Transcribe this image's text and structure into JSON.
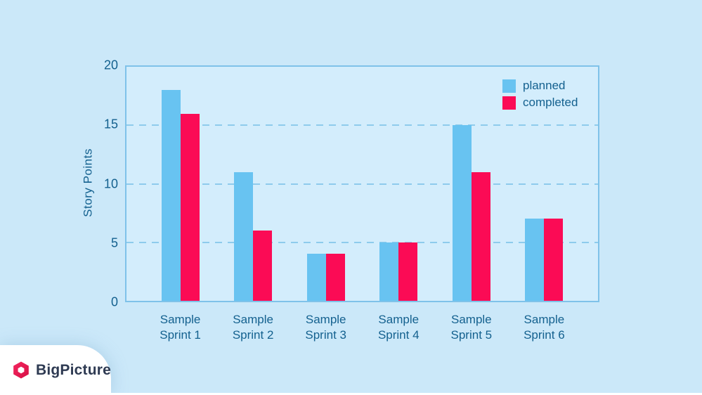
{
  "chart_data": {
    "type": "bar",
    "title": "",
    "xlabel": "",
    "ylabel": "Story Points",
    "categories": [
      "Sample Sprint 1",
      "Sample Sprint 2",
      "Sample Sprint 3",
      "Sample Sprint 4",
      "Sample Sprint 5",
      "Sample Sprint 6"
    ],
    "series": [
      {
        "name": "planned",
        "color": "#68c3f1",
        "values": [
          18,
          11,
          4,
          5,
          15,
          7
        ]
      },
      {
        "name": "completed",
        "color": "#fb0b55",
        "values": [
          16,
          6,
          4,
          5,
          11,
          7
        ]
      }
    ],
    "ylim": [
      0,
      20
    ],
    "yticks": [
      0,
      5,
      10,
      15,
      20
    ],
    "grid": "horizontal-dashed",
    "legend_position": "top-right"
  },
  "logo": {
    "text": "BigPicture",
    "icon": "hexagon-icon",
    "icon_color": "#e91a4f"
  },
  "colors": {
    "background": "#cbe8f9",
    "plot_background": "#d3edfc",
    "plot_border": "#7fc2e9",
    "gridline": "#8ecbec",
    "axis_text": "#14618f",
    "planned_bar": "#68c3f1",
    "completed_bar": "#fb0b55",
    "logo_text": "#2e3a52"
  }
}
